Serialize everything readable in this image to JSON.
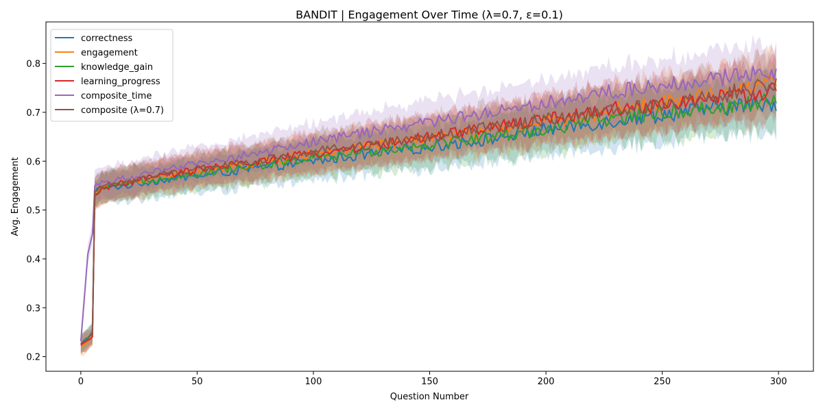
{
  "chart_data": {
    "type": "line",
    "title": "BANDIT | Engagement Over Time (λ=0.7, ε=0.1)",
    "xlabel": "Question Number",
    "ylabel": "Avg. Engagement",
    "xlim": [
      -15,
      315
    ],
    "ylim": [
      0.17,
      0.885
    ],
    "xticks": [
      0,
      50,
      100,
      150,
      200,
      250,
      300
    ],
    "yticks": [
      0.2,
      0.3,
      0.4,
      0.5,
      0.6,
      0.7,
      0.8
    ],
    "grid": false,
    "legend_position": "upper-left",
    "series": [
      {
        "name": "correctness",
        "color": "#1f77b4",
        "points": [
          [
            0,
            0.225
          ],
          [
            5,
            0.25
          ],
          [
            6,
            0.54
          ],
          [
            10,
            0.545
          ],
          [
            20,
            0.55
          ],
          [
            30,
            0.558
          ],
          [
            40,
            0.565
          ],
          [
            50,
            0.57
          ],
          [
            75,
            0.585
          ],
          [
            100,
            0.6
          ],
          [
            125,
            0.615
          ],
          [
            150,
            0.63
          ],
          [
            175,
            0.645
          ],
          [
            200,
            0.665
          ],
          [
            225,
            0.68
          ],
          [
            250,
            0.695
          ],
          [
            275,
            0.71
          ],
          [
            300,
            0.72
          ]
        ],
        "band": 0.05
      },
      {
        "name": "engagement",
        "color": "#ff7f0e",
        "points": [
          [
            0,
            0.22
          ],
          [
            5,
            0.24
          ],
          [
            6,
            0.53
          ],
          [
            10,
            0.548
          ],
          [
            20,
            0.556
          ],
          [
            30,
            0.565
          ],
          [
            40,
            0.572
          ],
          [
            50,
            0.58
          ],
          [
            75,
            0.595
          ],
          [
            100,
            0.615
          ],
          [
            125,
            0.63
          ],
          [
            150,
            0.648
          ],
          [
            175,
            0.662
          ],
          [
            200,
            0.68
          ],
          [
            225,
            0.7
          ],
          [
            250,
            0.72
          ],
          [
            275,
            0.74
          ],
          [
            300,
            0.765
          ]
        ],
        "band": 0.05
      },
      {
        "name": "knowledge_gain",
        "color": "#2ca02c",
        "points": [
          [
            0,
            0.225
          ],
          [
            5,
            0.245
          ],
          [
            6,
            0.535
          ],
          [
            10,
            0.545
          ],
          [
            20,
            0.553
          ],
          [
            30,
            0.562
          ],
          [
            40,
            0.568
          ],
          [
            50,
            0.575
          ],
          [
            75,
            0.59
          ],
          [
            100,
            0.605
          ],
          [
            125,
            0.62
          ],
          [
            150,
            0.635
          ],
          [
            175,
            0.65
          ],
          [
            200,
            0.665
          ],
          [
            225,
            0.685
          ],
          [
            250,
            0.7
          ],
          [
            275,
            0.71
          ],
          [
            300,
            0.725
          ]
        ],
        "band": 0.05
      },
      {
        "name": "learning_progress",
        "color": "#d62728",
        "points": [
          [
            0,
            0.222
          ],
          [
            5,
            0.24
          ],
          [
            6,
            0.532
          ],
          [
            10,
            0.546
          ],
          [
            20,
            0.556
          ],
          [
            30,
            0.566
          ],
          [
            40,
            0.574
          ],
          [
            50,
            0.582
          ],
          [
            75,
            0.598
          ],
          [
            100,
            0.615
          ],
          [
            125,
            0.632
          ],
          [
            150,
            0.648
          ],
          [
            175,
            0.668
          ],
          [
            200,
            0.685
          ],
          [
            225,
            0.705
          ],
          [
            250,
            0.715
          ],
          [
            275,
            0.73
          ],
          [
            300,
            0.745
          ]
        ],
        "band": 0.05
      },
      {
        "name": "composite_time",
        "color": "#9467bd",
        "points": [
          [
            0,
            0.23
          ],
          [
            2,
            0.35
          ],
          [
            3,
            0.41
          ],
          [
            5,
            0.45
          ],
          [
            6,
            0.555
          ],
          [
            10,
            0.558
          ],
          [
            20,
            0.565
          ],
          [
            30,
            0.575
          ],
          [
            40,
            0.585
          ],
          [
            50,
            0.595
          ],
          [
            75,
            0.615
          ],
          [
            100,
            0.64
          ],
          [
            125,
            0.66
          ],
          [
            150,
            0.68
          ],
          [
            175,
            0.7
          ],
          [
            200,
            0.72
          ],
          [
            225,
            0.74
          ],
          [
            250,
            0.755
          ],
          [
            275,
            0.77
          ],
          [
            300,
            0.785
          ]
        ],
        "band": 0.05
      },
      {
        "name": "composite (λ=0.7)",
        "color": "#8c564b",
        "points": [
          [
            0,
            0.225
          ],
          [
            5,
            0.245
          ],
          [
            6,
            0.535
          ],
          [
            10,
            0.55
          ],
          [
            20,
            0.56
          ],
          [
            30,
            0.568
          ],
          [
            40,
            0.576
          ],
          [
            50,
            0.584
          ],
          [
            75,
            0.6
          ],
          [
            100,
            0.618
          ],
          [
            125,
            0.635
          ],
          [
            150,
            0.65
          ],
          [
            175,
            0.668
          ],
          [
            200,
            0.685
          ],
          [
            225,
            0.7
          ],
          [
            250,
            0.715
          ],
          [
            275,
            0.735
          ],
          [
            300,
            0.76
          ]
        ],
        "band": 0.05
      }
    ]
  }
}
